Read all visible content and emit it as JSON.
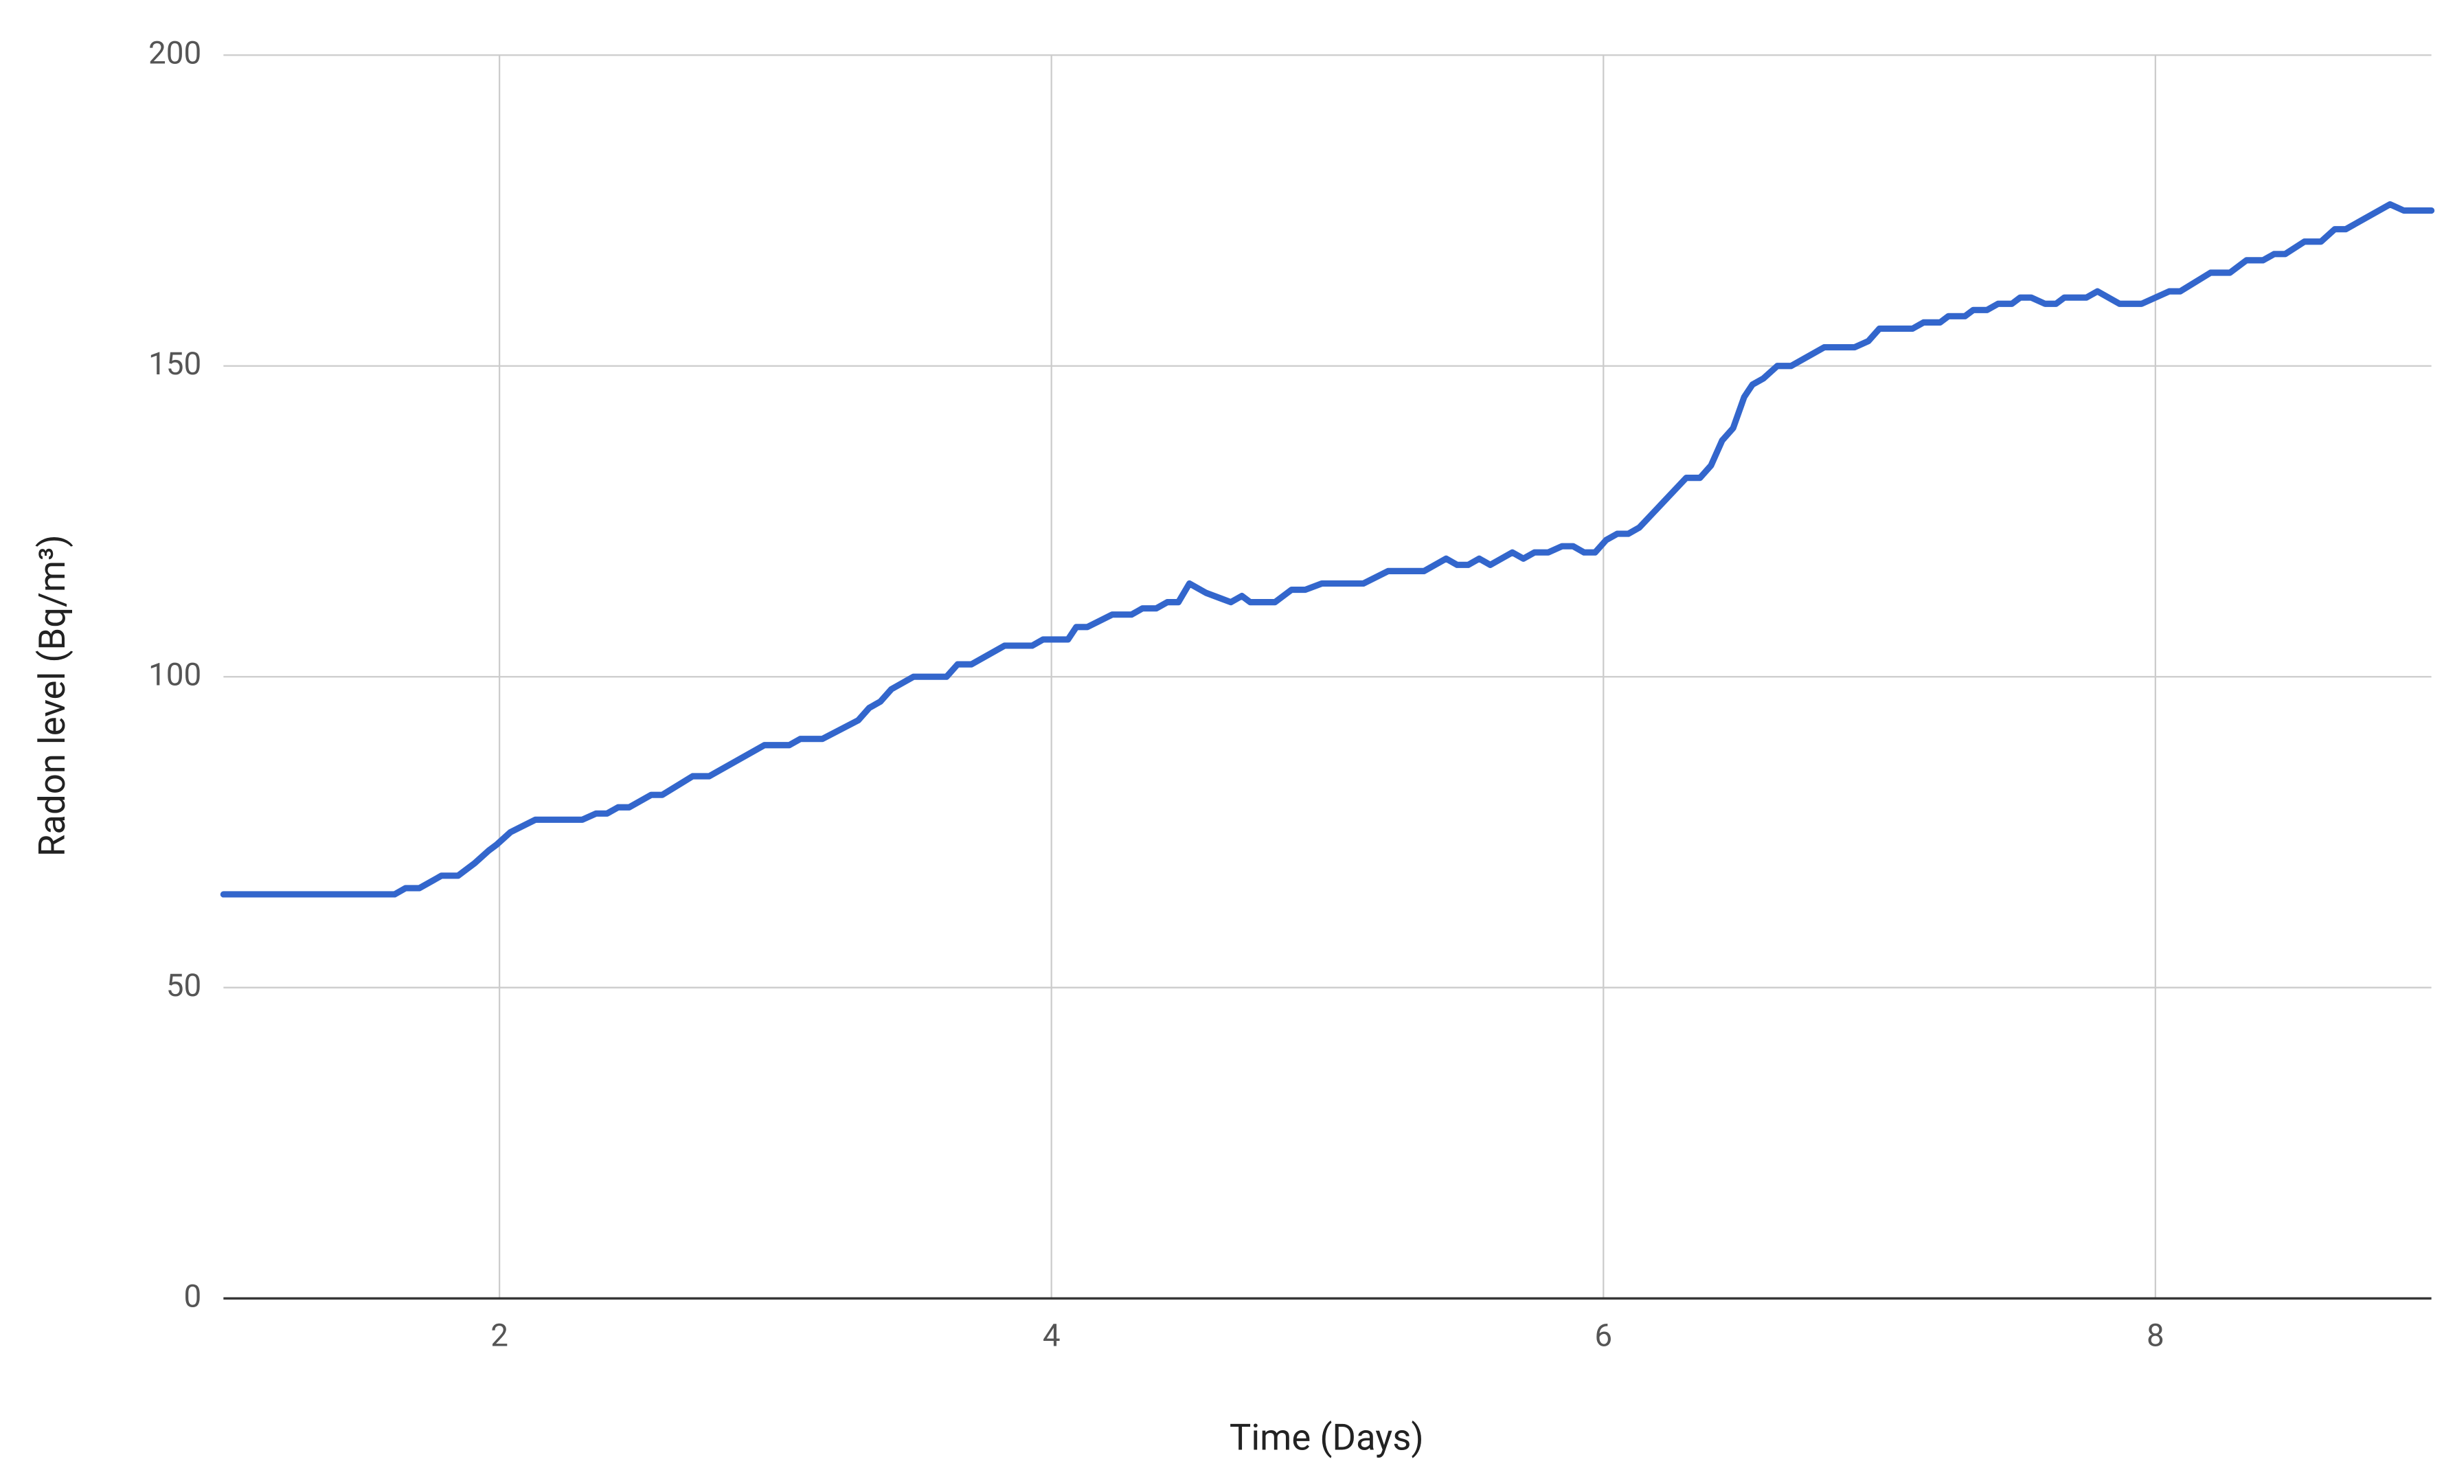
{
  "chart_data": {
    "type": "line",
    "x_label": "Time (Days)",
    "y_label": "Radon level (Bq/m³)",
    "color": "#3366cc",
    "grid": true,
    "xlim": [
      1,
      9
    ],
    "xticks": [
      2,
      4,
      6,
      8
    ],
    "ylim": [
      0,
      200
    ],
    "yticks": [
      0,
      50,
      100,
      150,
      200
    ],
    "x": [
      1,
      1.62,
      1.66,
      1.71,
      1.79,
      1.85,
      1.91,
      1.96,
      1.99,
      2.04,
      2.13,
      2.3,
      2.35,
      2.39,
      2.43,
      2.47,
      2.55,
      2.59,
      2.7,
      2.76,
      2.96,
      3.05,
      3.09,
      3.17,
      3.3,
      3.34,
      3.38,
      3.42,
      3.5,
      3.62,
      3.66,
      3.71,
      3.83,
      3.93,
      3.97,
      4.06,
      4.09,
      4.13,
      4.22,
      4.29,
      4.33,
      4.38,
      4.42,
      4.46,
      4.5,
      4.56,
      4.65,
      4.69,
      4.72,
      4.81,
      4.87,
      4.92,
      4.98,
      5.13,
      5.22,
      5.35,
      5.43,
      5.47,
      5.51,
      5.55,
      5.59,
      5.67,
      5.71,
      5.75,
      5.8,
      5.85,
      5.89,
      5.93,
      5.97,
      6.01,
      6.05,
      6.09,
      6.13,
      6.3,
      6.35,
      6.39,
      6.43,
      6.47,
      6.51,
      6.54,
      6.58,
      6.63,
      6.68,
      6.8,
      6.91,
      6.96,
      7,
      7.12,
      7.16,
      7.22,
      7.25,
      7.31,
      7.34,
      7.39,
      7.43,
      7.48,
      7.51,
      7.55,
      7.6,
      7.64,
      7.67,
      7.75,
      7.79,
      7.87,
      7.95,
      8.05,
      8.09,
      8.2,
      8.27,
      8.33,
      8.39,
      8.43,
      8.47,
      8.54,
      8.6,
      8.65,
      8.69,
      8.85,
      8.9,
      9
    ],
    "values": [
      65,
      65,
      66,
      66,
      68,
      68,
      70,
      72,
      73,
      75,
      77,
      77,
      78,
      78,
      79,
      79,
      81,
      81,
      84,
      84,
      89,
      89,
      90,
      90,
      93,
      95,
      96,
      98,
      100,
      100,
      102,
      102,
      105,
      105,
      106,
      106,
      108,
      108,
      110,
      110,
      111,
      111,
      112,
      112,
      115,
      113.5,
      112,
      113,
      112,
      112,
      114,
      114,
      115,
      115,
      117,
      117,
      119,
      118,
      118,
      119,
      118,
      120,
      119,
      120,
      120,
      121,
      121,
      120,
      120,
      122,
      123,
      123,
      124,
      132,
      132,
      134,
      138,
      140,
      145,
      147,
      148,
      150,
      150,
      153,
      153,
      154,
      156,
      156,
      157,
      157,
      158,
      158,
      159,
      159,
      160,
      160,
      161,
      161,
      160,
      160,
      161,
      161,
      162,
      160,
      160,
      162,
      162,
      165,
      165,
      167,
      167,
      168,
      168,
      170,
      170,
      172,
      172,
      176,
      175,
      175
    ]
  }
}
